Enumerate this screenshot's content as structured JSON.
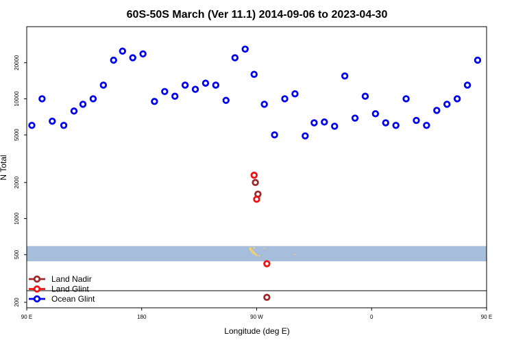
{
  "chart_data": {
    "type": "scatter",
    "title": "60S-50S March (Ver 11.1)   2014-09-06 to 2023-04-30",
    "xlabel": "Longitude (deg E)",
    "ylabel": "N Total",
    "x_scale": "longitude, 90E to 180 (wrapping through dateline)",
    "y_scale": "log",
    "xlim": [
      90,
      450
    ],
    "ylim": [
      180,
      40000
    ],
    "x_ticks": [
      {
        "value": 90,
        "label": "90 E"
      },
      {
        "value": 180,
        "label": "180"
      },
      {
        "value": 270,
        "label": "90 W"
      },
      {
        "value": 360,
        "label": "0"
      },
      {
        "value": 450,
        "label": "90 E"
      },
      {
        "value": 540,
        "label": "180"
      }
    ],
    "y_ticks": [
      {
        "value": 200,
        "label": "200"
      },
      {
        "value": 500,
        "label": "500"
      },
      {
        "value": 1000,
        "label": "1000"
      },
      {
        "value": 2000,
        "label": "2000"
      },
      {
        "value": 5000,
        "label": "5000"
      },
      {
        "value": 10000,
        "label": "10000"
      },
      {
        "value": 20000,
        "label": "20000"
      }
    ],
    "land_band": {
      "y_range": [
        440,
        590
      ],
      "color": "#a7bddc"
    },
    "land_marks_color": "#f5cf6e",
    "reference_line": {
      "y": 250,
      "color": "#000000"
    },
    "series": [
      {
        "name": "Land Nadir",
        "color": "#9b2a2a",
        "points": [
          [
            269,
            2000
          ],
          [
            271,
            1600
          ],
          [
            278,
            220
          ]
        ]
      },
      {
        "name": "Land Glint",
        "color": "#ee1111",
        "points": [
          [
            268,
            2300
          ],
          [
            270,
            1450
          ],
          [
            278,
            420
          ]
        ]
      },
      {
        "name": "Ocean Glint",
        "color": "#0000ee",
        "points": [
          [
            94,
            6000
          ],
          [
            102,
            10000
          ],
          [
            110,
            6500
          ],
          [
            119,
            6000
          ],
          [
            127,
            7900
          ],
          [
            134,
            9000
          ],
          [
            142,
            10000
          ],
          [
            150,
            13000
          ],
          [
            158,
            21000
          ],
          [
            165,
            25000
          ],
          [
            173,
            22000
          ],
          [
            181,
            23700
          ],
          [
            190,
            9500
          ],
          [
            198,
            11500
          ],
          [
            206,
            10500
          ],
          [
            214,
            13000
          ],
          [
            222,
            12000
          ],
          [
            230,
            13500
          ],
          [
            238,
            13000
          ],
          [
            246,
            9700
          ],
          [
            253,
            22000
          ],
          [
            261,
            26000
          ],
          [
            268,
            16000
          ],
          [
            276,
            9000
          ],
          [
            284,
            5000
          ],
          [
            292,
            10000
          ],
          [
            300,
            11000
          ],
          [
            308,
            4900
          ],
          [
            315,
            6300
          ],
          [
            323,
            6400
          ],
          [
            331,
            5900
          ],
          [
            339,
            15500
          ],
          [
            347,
            6900
          ],
          [
            355,
            10500
          ],
          [
            363,
            7500
          ],
          [
            371,
            6300
          ],
          [
            379,
            6000
          ],
          [
            387,
            10000
          ],
          [
            395,
            6600
          ],
          [
            403,
            6000
          ],
          [
            411,
            8000
          ],
          [
            419,
            9000
          ],
          [
            427,
            10000
          ],
          [
            435,
            13000
          ],
          [
            443,
            21000
          ]
        ]
      }
    ],
    "legend": {
      "placement": "bottom-left",
      "entries": [
        "Land Nadir",
        "Land Glint",
        "Ocean Glint"
      ]
    }
  }
}
